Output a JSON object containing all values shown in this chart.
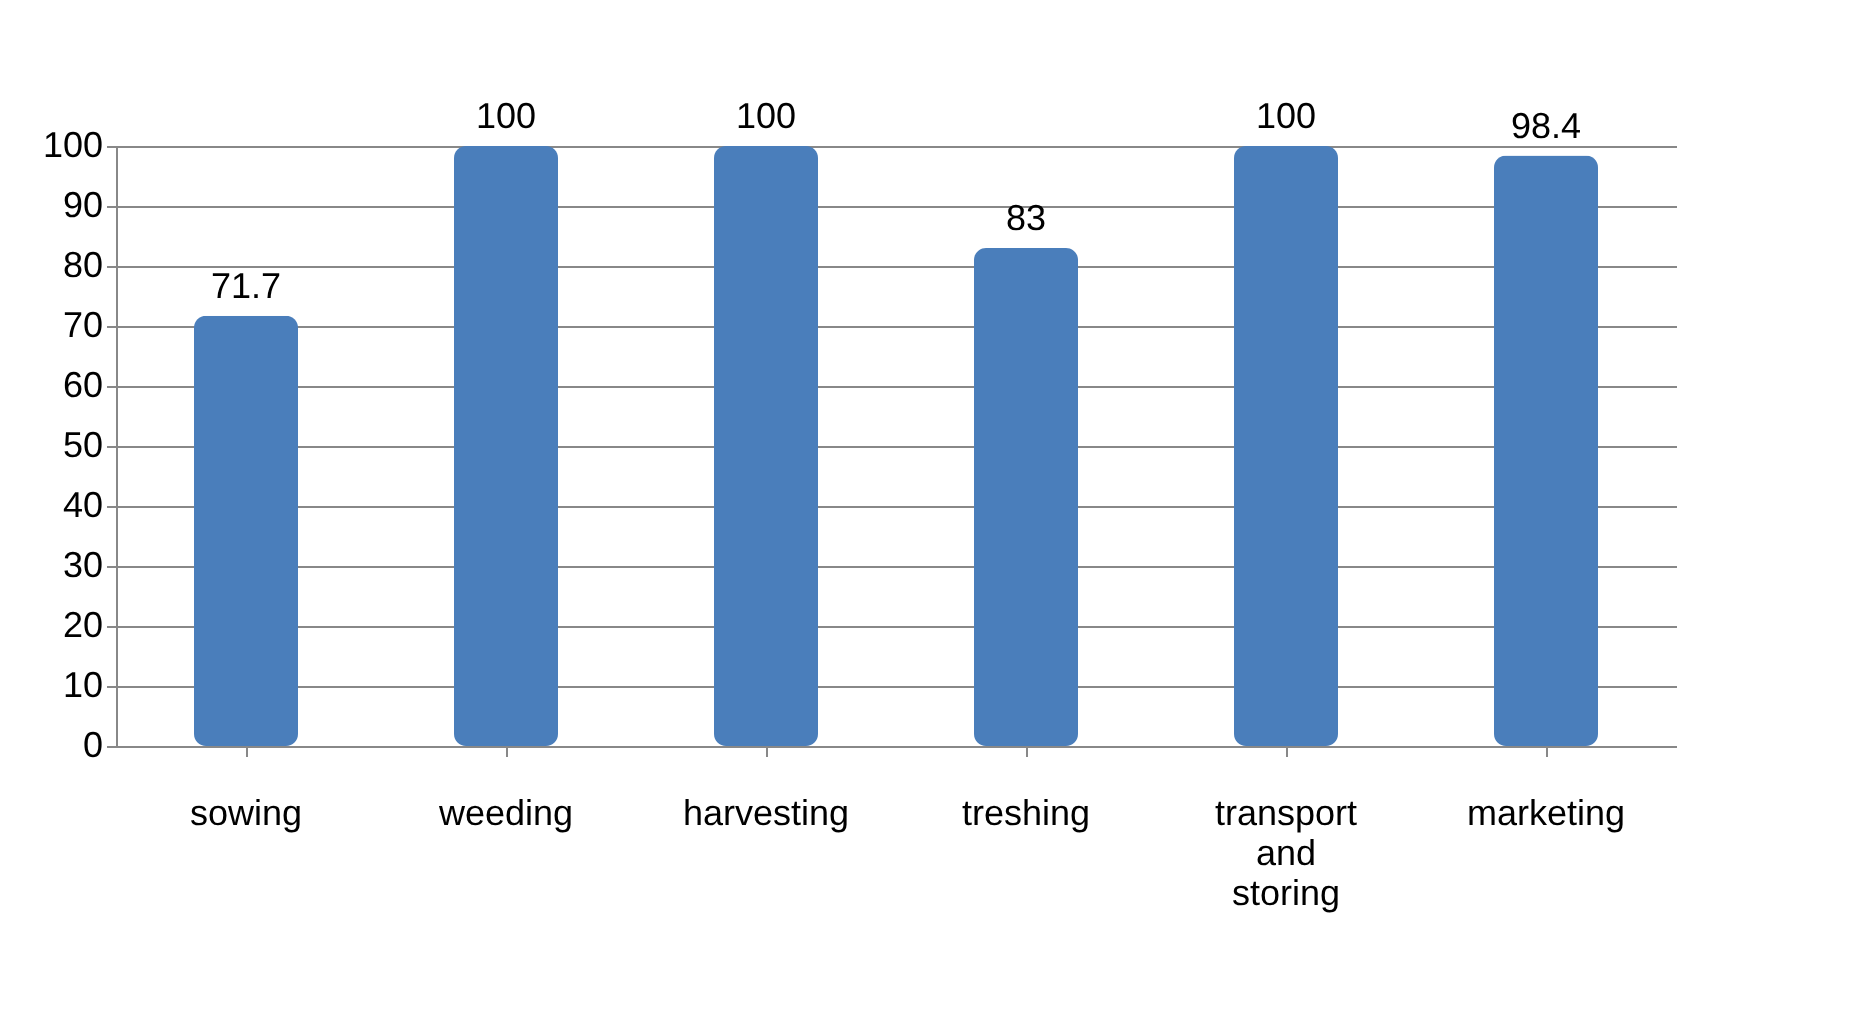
{
  "chart_data": {
    "type": "bar",
    "categories": [
      "sowing",
      "weeding",
      "harvesting",
      "treshing",
      "transport and storing",
      "marketing"
    ],
    "values": [
      71.7,
      100,
      100,
      83,
      100,
      98.4
    ],
    "color": "#4a7ebb",
    "ylim": [
      0,
      100
    ],
    "yticks": [
      0,
      10,
      20,
      30,
      40,
      50,
      60,
      70,
      80,
      90,
      100
    ],
    "grid": "y",
    "data_labels": true
  }
}
